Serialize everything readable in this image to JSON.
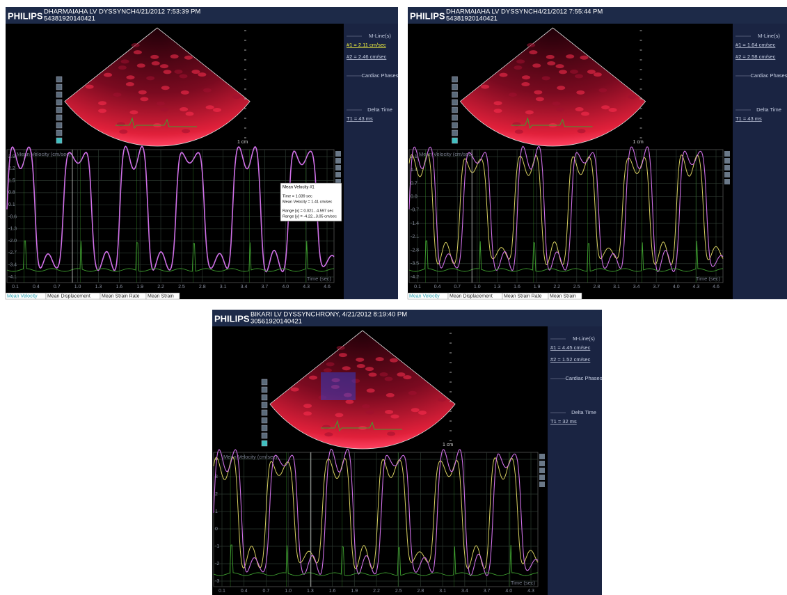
{
  "panels": [
    {
      "brand": "PHILIPS",
      "title": "DHARMAIAHA LV DYSSYNCH4/21/2012  7:53:39 PM",
      "patient_id": "54381920140421",
      "side": {
        "mline_header": "M-Line(s)",
        "mlines": [
          "#1 = 2.11 cm/sec",
          "#2 = 2.46 cm/sec"
        ],
        "cardiac_phases": "Cardiac Phases",
        "delta_time": "Delta Time",
        "t1": "T1 = 43 ms"
      },
      "scale_label": "1 cm",
      "plot": {
        "y_label": "Mean Velocity (cm/sec)",
        "x_label": "Time (sec)",
        "yticks": [
          "2.9",
          "2.2",
          "1.5",
          "0.8",
          "0.1",
          "-0.6",
          "-1.3",
          "-2.0",
          "-2.7",
          "-3.4",
          "-4.1"
        ],
        "xticks": [
          "0.1",
          "0.4",
          "0.7",
          "1.0",
          "1.3",
          "1.6",
          "1.9",
          "2.2",
          "2.5",
          "2.8",
          "3.1",
          "3.4",
          "3.7",
          "4.0",
          "4.3",
          "4.6"
        ]
      },
      "tooltip": {
        "title": "Mean Velocity #1",
        "lines": [
          "Time = 1.039 sec",
          "Mean Velocity = 1.41 cm/sec",
          "Range [x] = 0.021...4.597 sec",
          "Range [y] = -4.22...3.05 cm/sec"
        ]
      },
      "tabs": [
        "Mean Velocity",
        "Mean Displacement",
        "Mean Strain Rate",
        "Mean Strain"
      ]
    },
    {
      "brand": "PHILIPS",
      "title": "DHARMAIAHA LV DYSSYNCH4/21/2012  7:55:44 PM",
      "patient_id": "54381920140421",
      "side": {
        "mline_header": "M-Line(s)",
        "mlines": [
          "#1 = 1.64 cm/sec",
          "#2 = 2.58 cm/sec"
        ],
        "cardiac_phases": "Cardiac Phases",
        "delta_time": "Delta Time",
        "t1": "T1 = 43 ms"
      },
      "scale_label": "1 cm",
      "plot": {
        "y_label": "Mean Velocity (cm/sec)",
        "x_label": "Time (sec)",
        "yticks": [
          "2.1",
          "1.4",
          "0.7",
          "0.0",
          "-0.7",
          "-1.4",
          "-2.1",
          "-2.8",
          "-3.5",
          "-4.2"
        ],
        "xticks": [
          "0.1",
          "0.4",
          "0.7",
          "1.0",
          "1.3",
          "1.6",
          "1.9",
          "2.2",
          "2.5",
          "2.8",
          "3.1",
          "3.4",
          "3.7",
          "4.0",
          "4.3",
          "4.6"
        ]
      },
      "tabs": [
        "Mean Velocity",
        "Mean Displacement",
        "Mean Strain Rate",
        "Mean Strain"
      ]
    },
    {
      "brand": "PHILIPS",
      "title": "BIKARI LV DYSSYNCHRONY, 4/21/2012  8:19:40 PM",
      "patient_id": "30561920140421",
      "side": {
        "mline_header": "M-Line(s)",
        "mlines": [
          "#1 = 4.45 cm/sec",
          "#2 = 1.52 cm/sec"
        ],
        "cardiac_phases": "Cardiac Phases",
        "delta_time": "Delta Time",
        "t1": "T1 = 32 ms"
      },
      "scale_label": "1 cm",
      "plot": {
        "y_label": "Mean Velocity (cm/sec)",
        "x_label": "Time (sec)",
        "yticks": [
          "4",
          "3",
          "2",
          "1",
          "0",
          "-1",
          "-2",
          "-3"
        ],
        "xticks": [
          "0.1",
          "0.4",
          "0.7",
          "1.0",
          "1.3",
          "1.6",
          "1.9",
          "2.2",
          "2.5",
          "2.8",
          "3.1",
          "3.4",
          "3.7",
          "4.0",
          "4.3"
        ]
      }
    }
  ]
}
